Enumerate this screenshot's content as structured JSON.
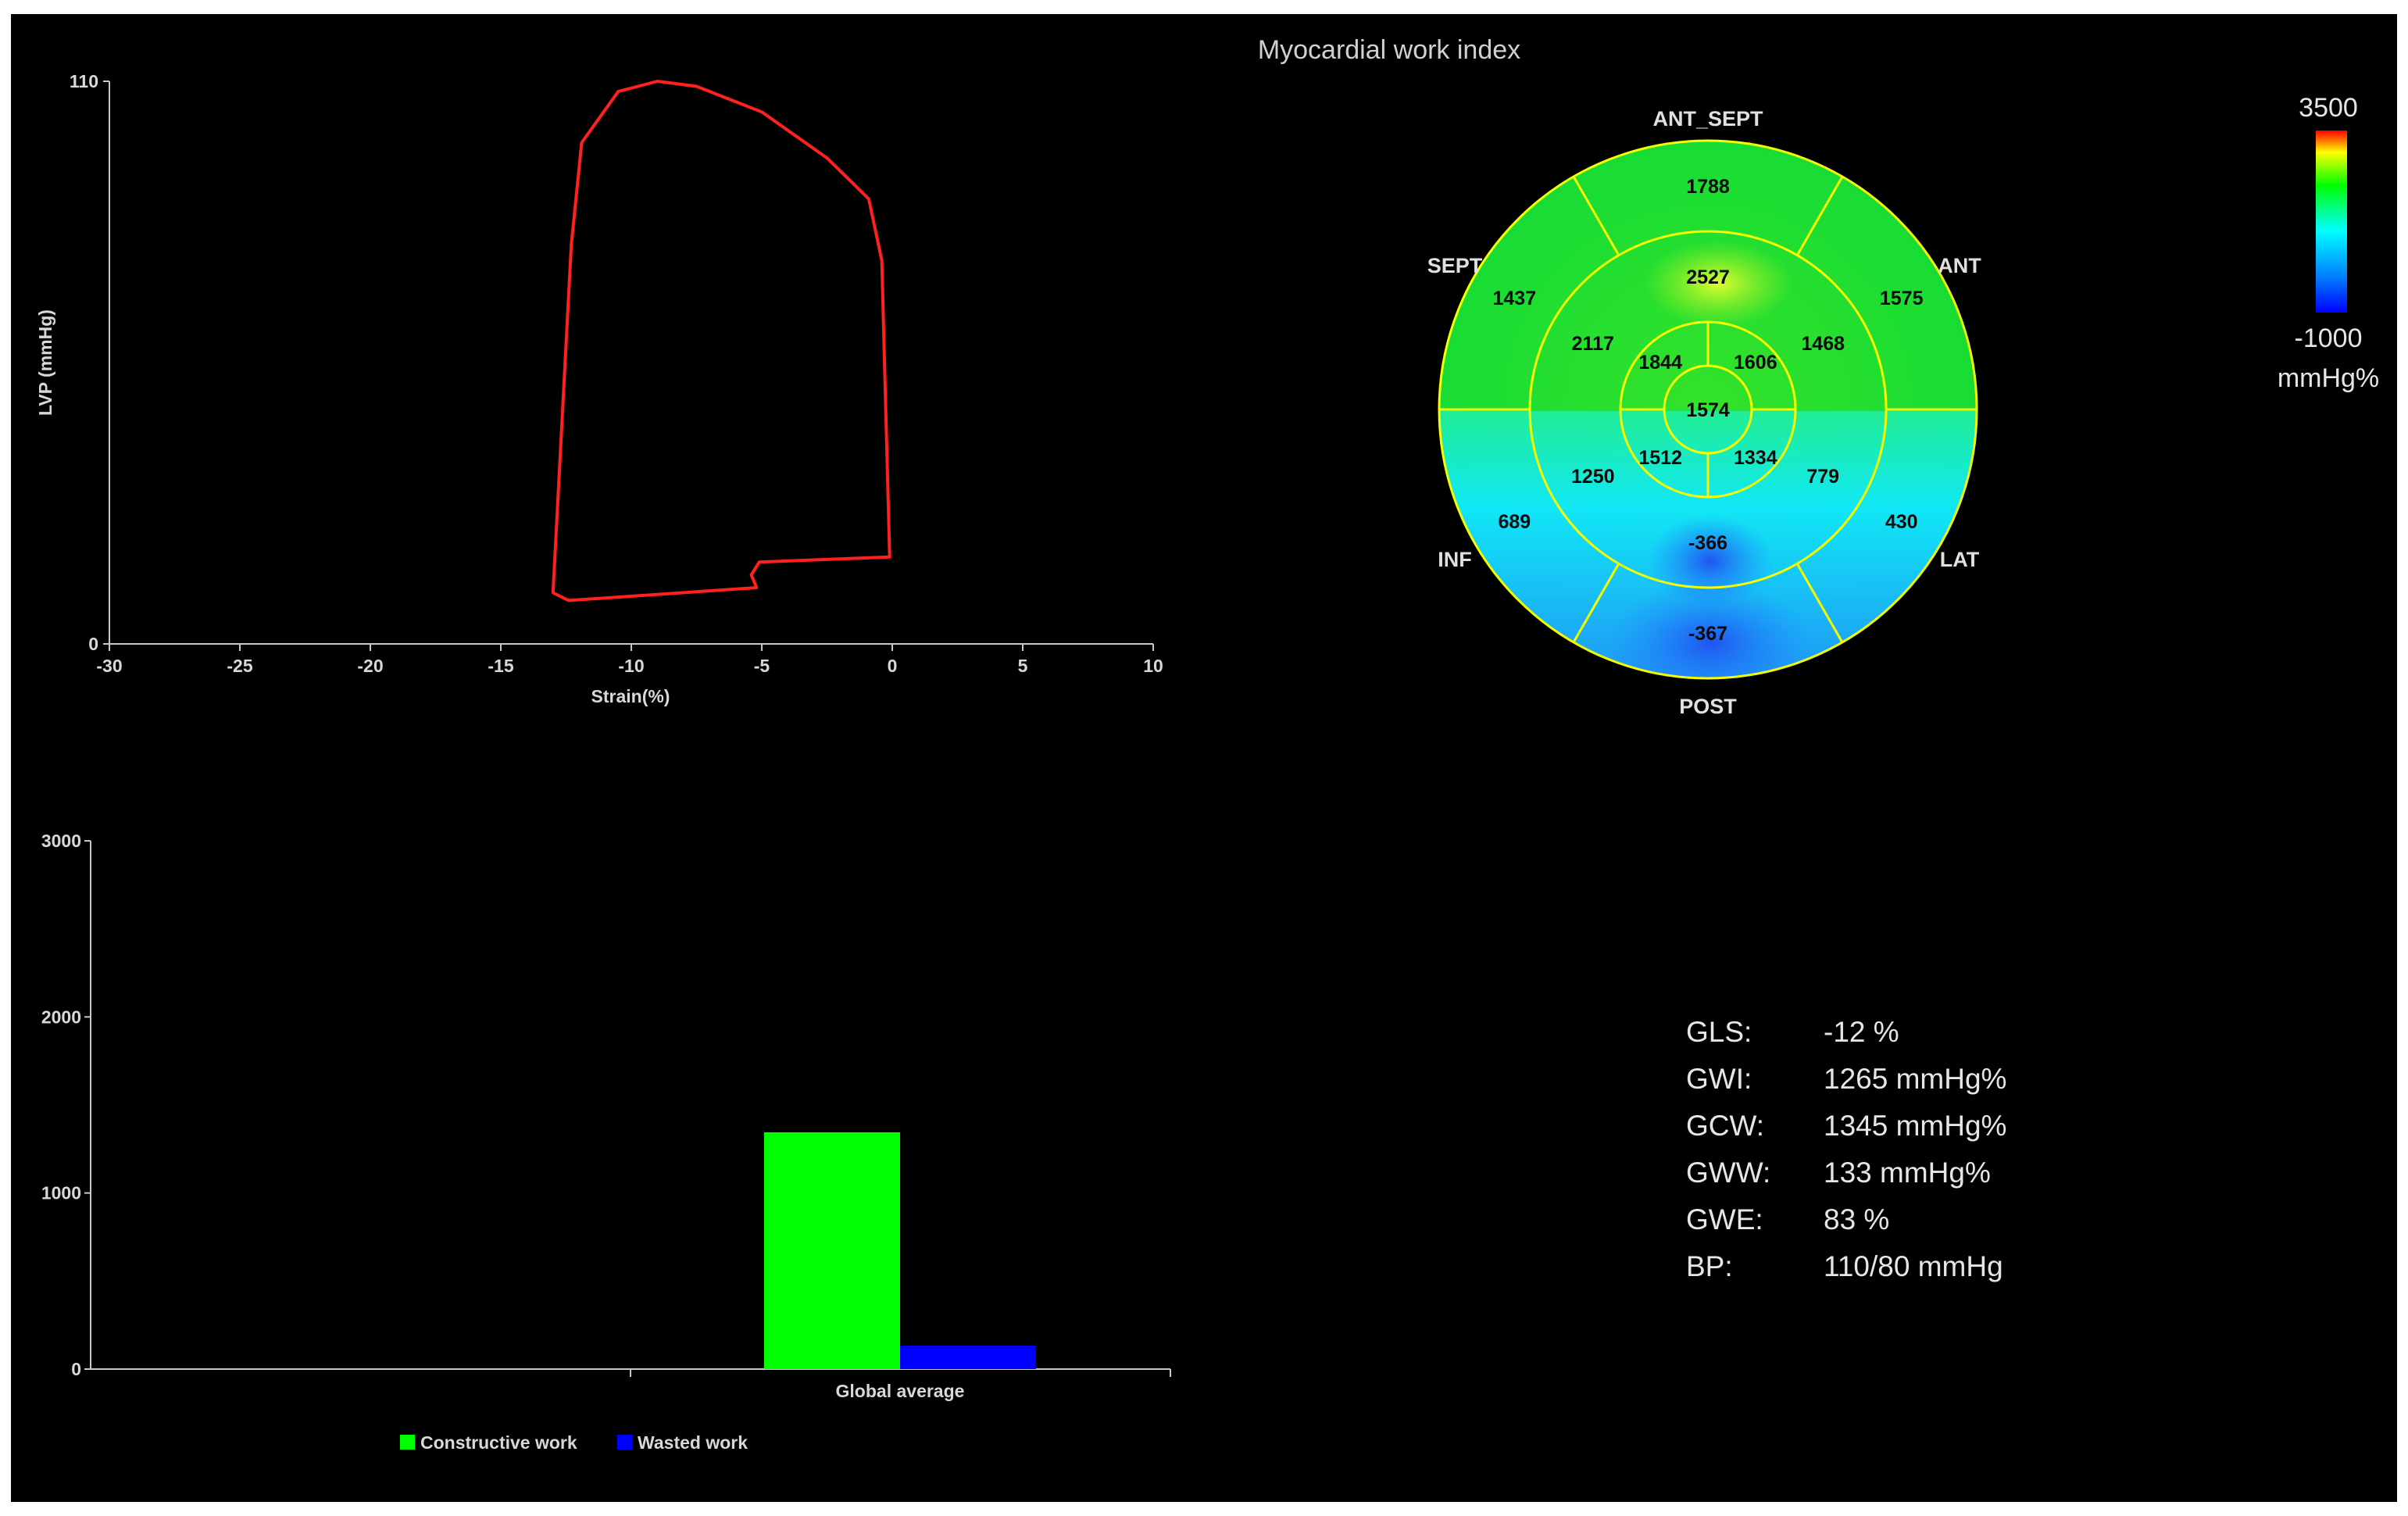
{
  "title": "Myocardial work index",
  "loop_chart": {
    "type": "line",
    "xlabel": "Strain(%)",
    "ylabel": "LVP (mmHg)",
    "xlim": [
      -30,
      10
    ],
    "ylim": [
      0,
      110
    ],
    "x_ticks": [
      "-30",
      "-25",
      "-20",
      "-15",
      "-10",
      "-5",
      "0",
      "5",
      "10"
    ],
    "y_ticks": [
      "110",
      "0"
    ],
    "line_color": "#ff2020"
  },
  "bullseye": {
    "walls": {
      "ant_sept": "ANT_SEPT",
      "ant": "ANT",
      "sept": "SEPT",
      "inf": "INF",
      "lat": "LAT",
      "post": "POST"
    },
    "basal": [
      "1788",
      "1575",
      "430",
      "-367",
      "689",
      "1437"
    ],
    "mid": [
      "2527",
      "1468",
      "779",
      "-366",
      "1250",
      "2117"
    ],
    "apical": [
      "1606",
      "1334",
      "1512",
      "1844"
    ],
    "apex": "1574"
  },
  "colorbar": {
    "max": "3500",
    "min": "-1000",
    "unit": "mmHg%"
  },
  "bar_chart": {
    "type": "bar",
    "categories": [
      "Global average"
    ],
    "series": [
      {
        "name": "Constructive work",
        "color": "#00ff00",
        "values": [
          1345
        ]
      },
      {
        "name": "Wasted work",
        "color": "#0000ff",
        "values": [
          133
        ]
      }
    ],
    "ylim": [
      0,
      3000
    ],
    "y_ticks": [
      "3000",
      "2000",
      "1000",
      "0"
    ]
  },
  "stats": [
    {
      "key": "GLS:",
      "value": "-12 %"
    },
    {
      "key": "GWI:",
      "value": "1265 mmHg%"
    },
    {
      "key": "GCW:",
      "value": "1345 mmHg%"
    },
    {
      "key": "GWW:",
      "value": "133 mmHg%"
    },
    {
      "key": "GWE:",
      "value": "83 %"
    },
    {
      "key": "BP:",
      "value": "110/80 mmHg"
    }
  ],
  "chart_data": [
    {
      "type": "line",
      "xlabel": "Strain(%)",
      "ylabel": "LVP (mmHg)",
      "xlim": [
        -30,
        10
      ],
      "ylim": [
        0,
        110
      ],
      "series": [
        {
          "x": [
            -0.1,
            -5.1,
            -5.4,
            -5.2,
            -12.4,
            -13.0,
            -12.3,
            -11.9,
            -10.5,
            -9.0,
            -7.5,
            -5.0,
            -2.5,
            -0.9,
            -0.4,
            -0.1
          ],
          "y": [
            17,
            16,
            13.5,
            11,
            8.5,
            10,
            78,
            98,
            108,
            110,
            109,
            104,
            95,
            87,
            75,
            17
          ]
        }
      ]
    },
    {
      "type": "bar",
      "categories": [
        "Global average"
      ],
      "series": [
        {
          "name": "Constructive work",
          "values": [
            1345
          ]
        },
        {
          "name": "Wasted work",
          "values": [
            133
          ]
        }
      ],
      "ylim": [
        0,
        3000
      ]
    }
  ]
}
